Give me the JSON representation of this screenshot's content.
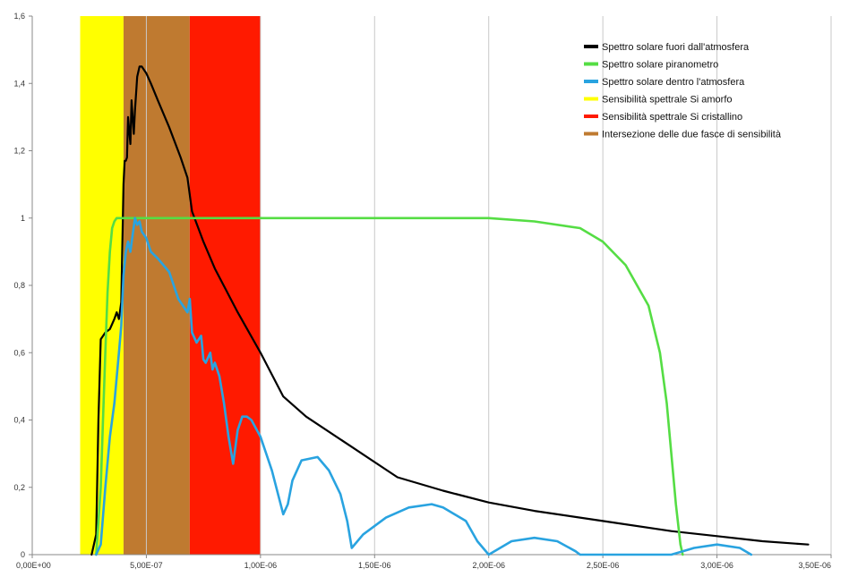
{
  "chart_data": {
    "type": "line",
    "title": "",
    "xlabel": "",
    "ylabel": "",
    "xlim": [
      0,
      3.5e-06
    ],
    "ylim": [
      0,
      1.6
    ],
    "grid": {
      "x": true,
      "y": false
    },
    "legend_position": "top-right",
    "x_tick_values": [
      0,
      5e-07,
      1e-06,
      1.5e-06,
      2e-06,
      2.5e-06,
      3e-06,
      3.5e-06
    ],
    "x_tick_labels": [
      "0,00E+00",
      "5,00E-07",
      "1,00E-06",
      "1,50E-06",
      "2,00E-06",
      "2,50E-06",
      "3,00E-06",
      "3,50E-06"
    ],
    "y_tick_values": [
      0,
      0.2,
      0.4,
      0.6,
      0.8,
      1,
      1.2,
      1.4,
      1.6
    ],
    "y_tick_labels": [
      "0",
      "0,2",
      "0,4",
      "0,6",
      "0,8",
      "1",
      "1,2",
      "1,4",
      "1,6"
    ],
    "bands": [
      {
        "name": "Sensibilità spettrale Si amorfo",
        "color": "#ffff00",
        "x_range": [
          2.1e-07,
          4e-07
        ]
      },
      {
        "name": "Intersezione delle due fasce di sensibilità",
        "color": "#bf7a30",
        "x_range": [
          4e-07,
          6.9e-07
        ]
      },
      {
        "name": "Sensibilità spettrale Si cristallino",
        "color": "#ff1a00",
        "x_range": [
          6.9e-07,
          1e-06
        ]
      }
    ],
    "series": [
      {
        "name": "Spettro solare fuori dall'atmosfera",
        "color": "#000000",
        "x": [
          2.6e-07,
          2.8e-07,
          2.9e-07,
          3e-07,
          3.2e-07,
          3.4e-07,
          3.6e-07,
          3.7e-07,
          3.8e-07,
          3.9e-07,
          4e-07,
          4.05e-07,
          4.1e-07,
          4.15e-07,
          4.2e-07,
          4.3e-07,
          4.35e-07,
          4.4e-07,
          4.45e-07,
          4.5e-07,
          4.6e-07,
          4.7e-07,
          4.8e-07,
          5e-07,
          5.2e-07,
          5.5e-07,
          6e-07,
          6.5e-07,
          6.8e-07,
          7e-07,
          7.5e-07,
          8e-07,
          9e-07,
          1e-06,
          1.1e-06,
          1.2e-06,
          1.4e-06,
          1.6e-06,
          1.8e-06,
          2e-06,
          2.2e-06,
          2.5e-06,
          2.8e-06,
          3e-06,
          3.2e-06,
          3.4e-06
        ],
        "y": [
          0,
          0.06,
          0.4,
          0.64,
          0.66,
          0.67,
          0.7,
          0.72,
          0.7,
          0.75,
          1.1,
          1.17,
          1.17,
          1.18,
          1.3,
          1.22,
          1.35,
          1.3,
          1.25,
          1.32,
          1.42,
          1.45,
          1.45,
          1.43,
          1.4,
          1.35,
          1.27,
          1.18,
          1.12,
          1.02,
          0.93,
          0.85,
          0.72,
          0.6,
          0.47,
          0.41,
          0.32,
          0.23,
          0.19,
          0.155,
          0.13,
          0.1,
          0.07,
          0.055,
          0.04,
          0.03
        ]
      },
      {
        "name": "Spettro solare piranometro",
        "color": "#55dd44",
        "x": [
          2.8e-07,
          3e-07,
          3.1e-07,
          3.2e-07,
          3.3e-07,
          3.4e-07,
          3.5e-07,
          3.6e-07,
          3.7e-07,
          4e-07,
          5e-07,
          1e-06,
          2e-06,
          2.2e-06,
          2.4e-06,
          2.5e-06,
          2.6e-06,
          2.7e-06,
          2.75e-06,
          2.78e-06,
          2.8e-06,
          2.82e-06,
          2.84e-06,
          2.85e-06
        ],
        "y": [
          0,
          0.2,
          0.4,
          0.6,
          0.78,
          0.9,
          0.97,
          0.99,
          1,
          1,
          1,
          1,
          1,
          0.99,
          0.97,
          0.93,
          0.86,
          0.74,
          0.6,
          0.45,
          0.3,
          0.15,
          0.03,
          0
        ]
      },
      {
        "name": "Spettro solare dentro l'atmosfera",
        "color": "#29a3e0",
        "x": [
          2.8e-07,
          3e-07,
          3.2e-07,
          3.4e-07,
          3.6e-07,
          3.8e-07,
          3.9e-07,
          4e-07,
          4.1e-07,
          4.2e-07,
          4.3e-07,
          4.4e-07,
          4.5e-07,
          4.6e-07,
          4.7e-07,
          4.8e-07,
          5e-07,
          5.2e-07,
          5.5e-07,
          6e-07,
          6.4e-07,
          6.6e-07,
          6.8e-07,
          6.9e-07,
          7e-07,
          7.2e-07,
          7.4e-07,
          7.5e-07,
          7.6e-07,
          7.8e-07,
          7.9e-07,
          8e-07,
          8.2e-07,
          8.4e-07,
          8.6e-07,
          8.8e-07,
          9e-07,
          9.2e-07,
          9.4e-07,
          9.6e-07,
          1e-06,
          1.05e-06,
          1.1e-06,
          1.12e-06,
          1.14e-06,
          1.18e-06,
          1.25e-06,
          1.3e-06,
          1.35e-06,
          1.38e-06,
          1.4e-06,
          1.45e-06,
          1.55e-06,
          1.65e-06,
          1.75e-06,
          1.8e-06,
          1.9e-06,
          1.95e-06,
          2e-06,
          2.1e-06,
          2.2e-06,
          2.3e-06,
          2.38e-06,
          2.4e-06,
          2.5e-06,
          2.7e-06,
          2.8e-06,
          2.9e-06,
          3e-06,
          3.1e-06,
          3.15e-06
        ],
        "y": [
          0,
          0.03,
          0.2,
          0.35,
          0.45,
          0.6,
          0.68,
          0.83,
          0.9,
          0.93,
          0.9,
          0.95,
          1,
          0.98,
          0.99,
          0.96,
          0.94,
          0.9,
          0.88,
          0.84,
          0.76,
          0.74,
          0.72,
          0.76,
          0.66,
          0.63,
          0.65,
          0.58,
          0.57,
          0.6,
          0.55,
          0.57,
          0.53,
          0.45,
          0.35,
          0.27,
          0.37,
          0.41,
          0.41,
          0.4,
          0.35,
          0.25,
          0.12,
          0.15,
          0.22,
          0.28,
          0.29,
          0.25,
          0.18,
          0.1,
          0.02,
          0.06,
          0.11,
          0.14,
          0.15,
          0.14,
          0.1,
          0.04,
          0.0,
          0.04,
          0.05,
          0.04,
          0.01,
          0.0,
          0.0,
          0.0,
          0.0,
          0.02,
          0.03,
          0.02,
          0.0
        ]
      }
    ],
    "legend": [
      {
        "label": "Spettro solare fuori dall'atmosfera",
        "color": "#000000"
      },
      {
        "label": "Spettro solare piranometro",
        "color": "#55dd44"
      },
      {
        "label": "Spettro solare dentro l'atmosfera",
        "color": "#29a3e0"
      },
      {
        "label": "Sensibilità spettrale Si amorfo",
        "color": "#ffff00"
      },
      {
        "label": "Sensibilità spettrale Si cristallino",
        "color": "#ff1a00"
      },
      {
        "label": "Intersezione delle due fasce di sensibilità",
        "color": "#bf7a30"
      }
    ]
  }
}
